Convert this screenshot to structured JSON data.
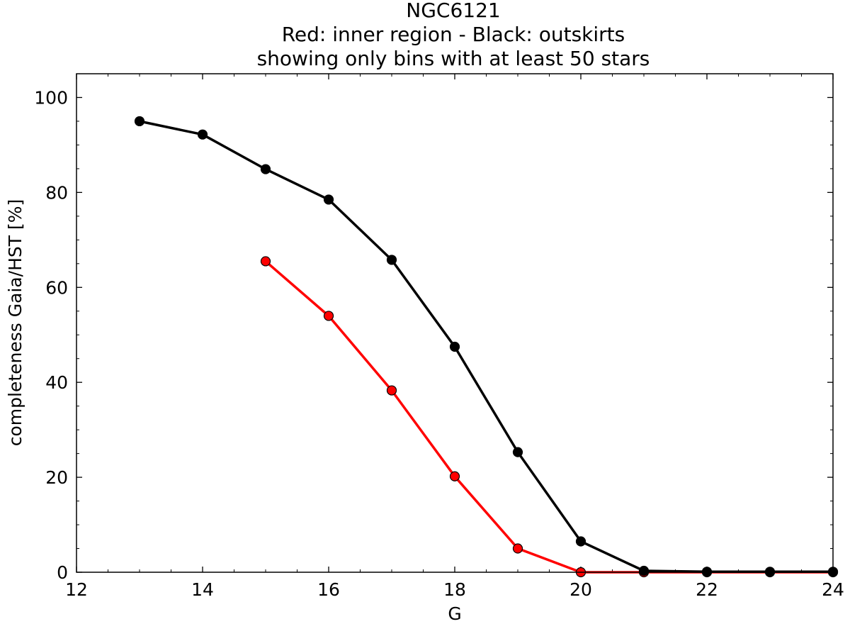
{
  "chart_data": {
    "type": "line",
    "title": "NGC6121",
    "subtitle_lines": [
      "Red: inner region - Black: outskirts",
      "showing only bins with at least 50 stars"
    ],
    "xlabel": "G",
    "ylabel": "completeness Gaia/HST [%]",
    "xlim": [
      12,
      24
    ],
    "ylim": [
      0,
      105
    ],
    "xticks": [
      12,
      14,
      16,
      18,
      20,
      22,
      24
    ],
    "yticks": [
      0,
      20,
      40,
      60,
      80,
      100
    ],
    "x_minor_step": 0.5,
    "y_minor_step": 5,
    "grid": false,
    "series": [
      {
        "color": "#000000",
        "x": [
          13,
          14,
          15,
          16,
          17,
          18,
          19,
          20,
          21,
          22,
          23,
          24
        ],
        "y": [
          95.0,
          92.2,
          84.9,
          78.5,
          65.8,
          47.5,
          25.3,
          6.5,
          0.3,
          0.1,
          0.1,
          0.1
        ]
      },
      {
        "color": "#ff0000",
        "x": [
          15,
          16,
          17,
          18,
          19,
          20,
          21,
          22,
          23,
          24
        ],
        "y": [
          65.5,
          54.0,
          38.3,
          20.2,
          5.0,
          0.0,
          0.0,
          0.0,
          0.0,
          0.0
        ]
      }
    ]
  }
}
